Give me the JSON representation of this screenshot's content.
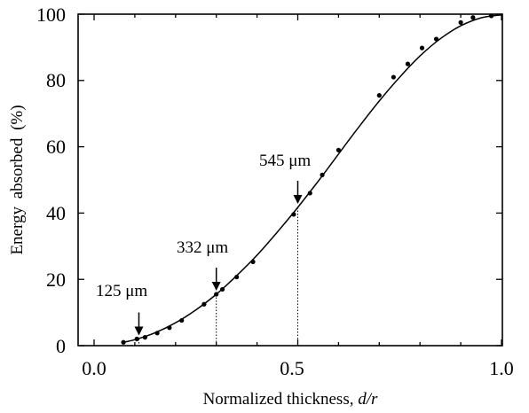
{
  "chart_data": {
    "type": "scatter",
    "title": "",
    "xlabel": "Normalized thickness, d/r",
    "xlabel_parts": [
      "Normalized thickness, ",
      "d/r"
    ],
    "ylabel": "Energy absorbed (%)",
    "xlim": [
      0.0,
      1.0
    ],
    "ylim": [
      0,
      100
    ],
    "x_ticks": [
      0.0,
      0.5,
      1.0
    ],
    "x_tick_labels": [
      "0.0",
      "0.5",
      "1.0"
    ],
    "y_ticks": [
      0,
      20,
      40,
      60,
      80,
      100
    ],
    "y_tick_labels": [
      "0",
      "20",
      "40",
      "60",
      "80",
      "100"
    ],
    "grid": false,
    "legend": "none",
    "series": [
      {
        "kind": "points",
        "x": [
          0.072,
          0.105,
          0.125,
          0.155,
          0.185,
          0.215,
          0.27,
          0.3,
          0.315,
          0.35,
          0.39,
          0.49,
          0.53,
          0.56,
          0.6,
          0.7,
          0.735,
          0.77,
          0.805,
          0.84,
          0.9,
          0.93,
          0.975
        ],
        "y": [
          1,
          2,
          2.5,
          3.8,
          5.4,
          7.6,
          12.5,
          15.5,
          17,
          20.7,
          25.3,
          39.6,
          46,
          51.5,
          59,
          75.5,
          81,
          85,
          89.8,
          92.5,
          97.5,
          99,
          99.5
        ]
      },
      {
        "kind": "fit",
        "x": [
          0.07,
          0.1,
          0.15,
          0.2,
          0.25,
          0.3,
          0.35,
          0.4,
          0.45,
          0.5,
          0.55,
          0.6,
          0.65,
          0.7,
          0.75,
          0.8,
          0.85,
          0.9,
          0.95,
          1.0
        ],
        "y": [
          1,
          1.8,
          3.9,
          6.9,
          10.8,
          15.5,
          21.1,
          27.3,
          34.3,
          41.7,
          49.6,
          57.8,
          66.0,
          73.8,
          81.0,
          87.4,
          92.6,
          96.5,
          98.9,
          99.8
        ]
      }
    ],
    "annotations": [
      {
        "text": "125 μm",
        "x": 0.11,
        "y": 2
      },
      {
        "text": "332 μm",
        "x": 0.3,
        "y": 15.5
      },
      {
        "text": "545 μm",
        "x": 0.5,
        "y": 41.7
      }
    ]
  }
}
